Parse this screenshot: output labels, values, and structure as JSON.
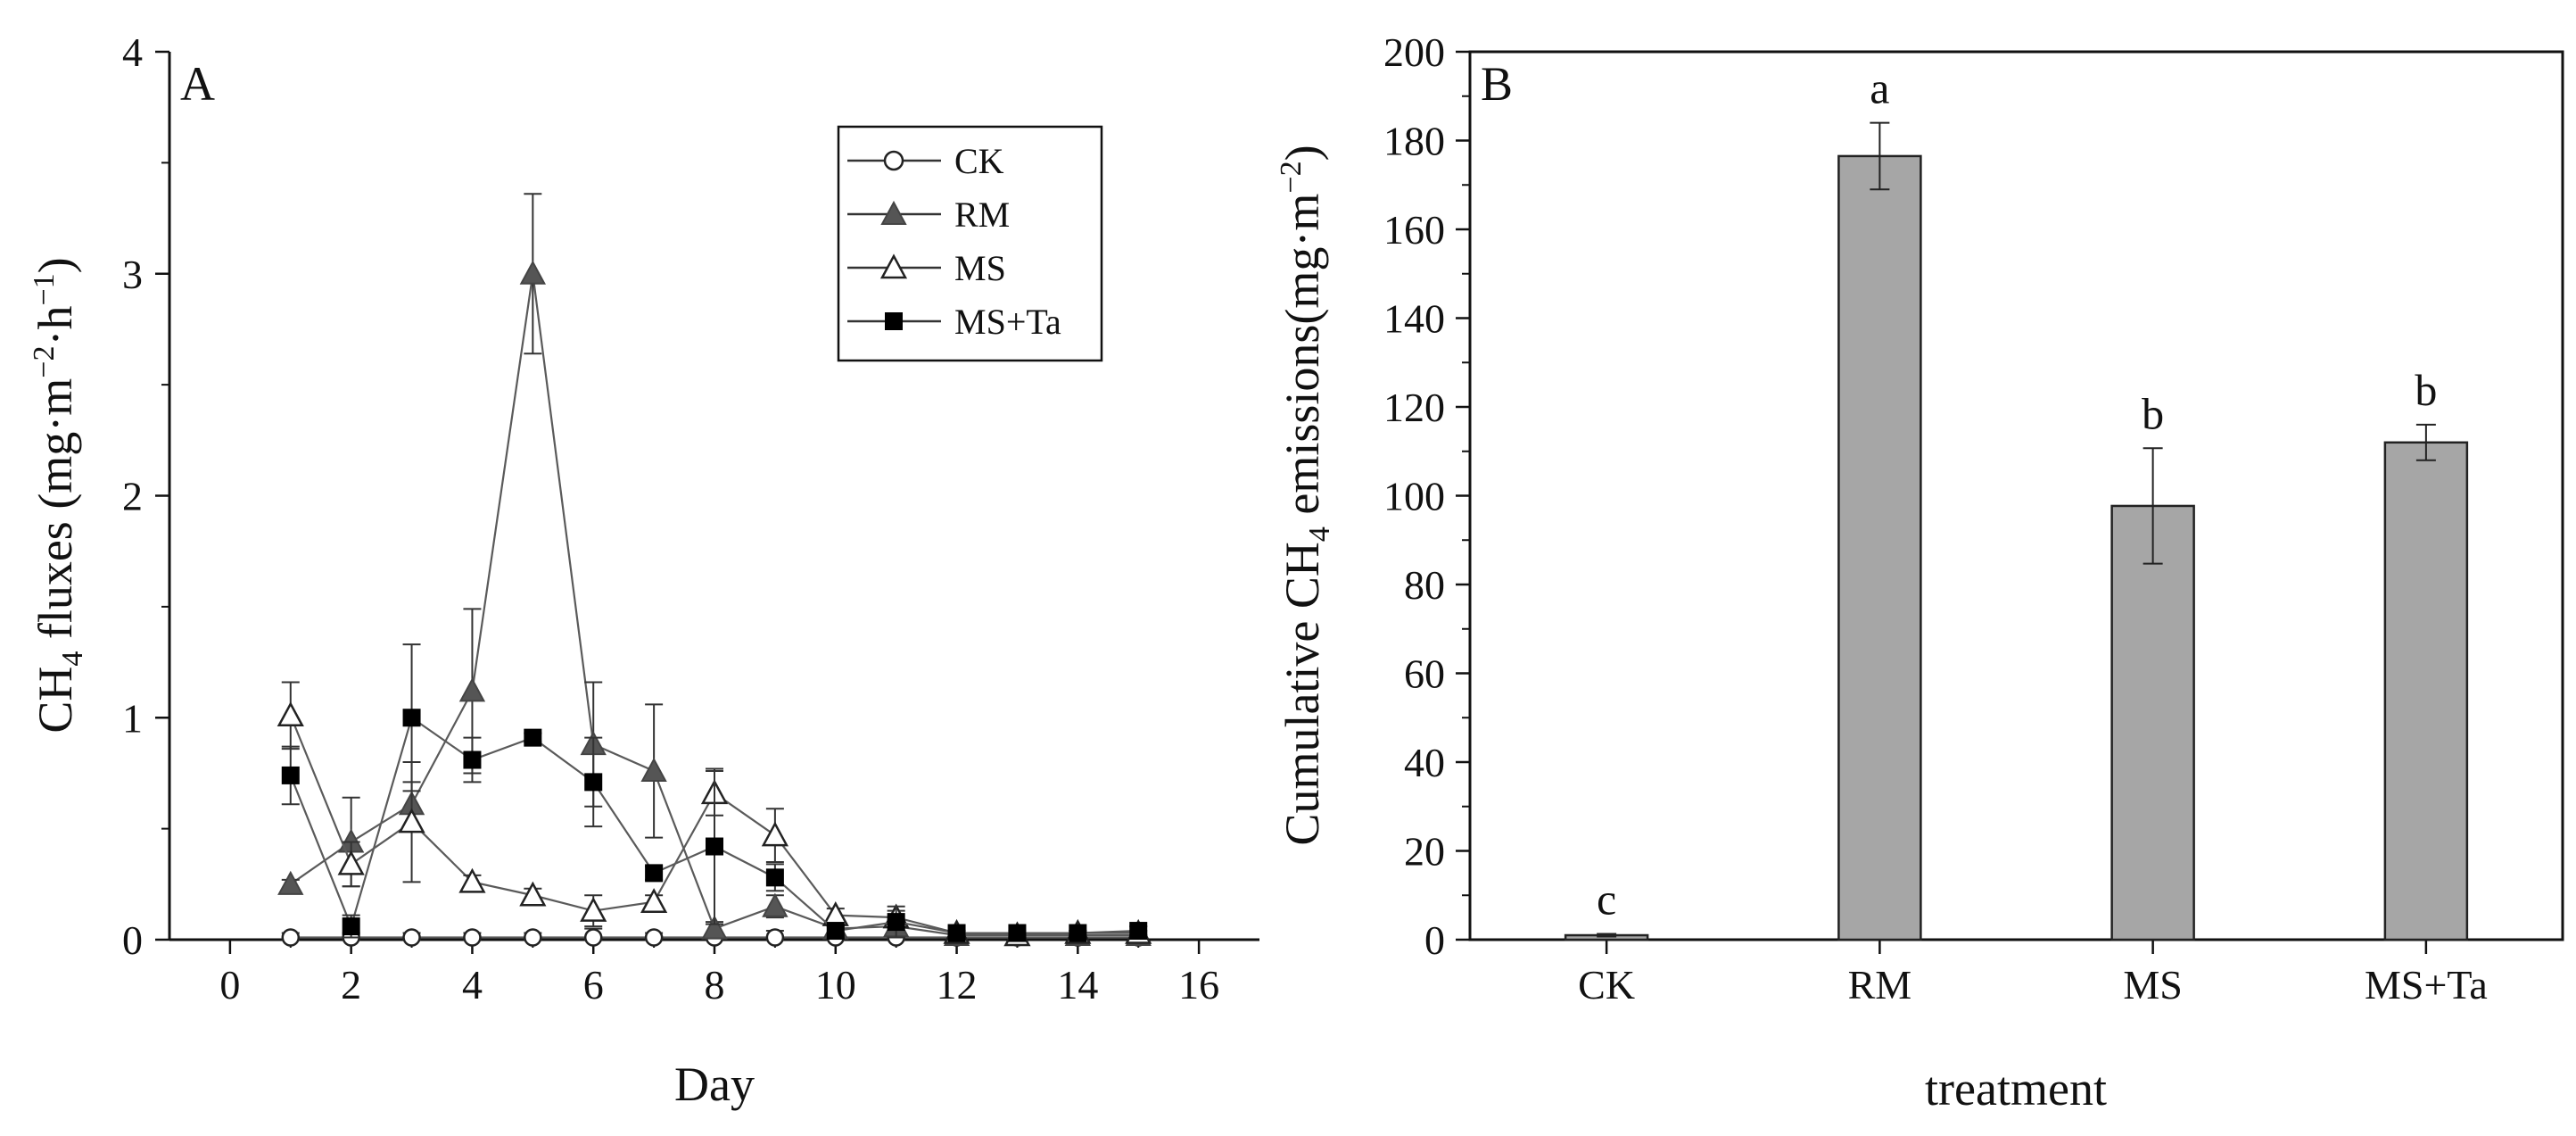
{
  "colors": {
    "axis": "#111111",
    "bar_fill": "#a6a6a6",
    "rm_marker": "#555555",
    "line": "#666666"
  },
  "chart_data": [
    {
      "type": "line",
      "panel_label": "A",
      "xlabel": "Day",
      "ylabel_main": "CH",
      "ylabel_sub": "4",
      "ylabel_rest": " fluxes (mg·m",
      "ylabel_sup1": "−2",
      "ylabel_mid": "·h",
      "ylabel_sup2": "−1",
      "ylabel_end": ")",
      "xlim": [
        -1,
        17
      ],
      "ylim": [
        0,
        4
      ],
      "xticks": [
        0,
        2,
        4,
        6,
        8,
        10,
        12,
        14,
        16
      ],
      "yticks": [
        0,
        1,
        2,
        3,
        4
      ],
      "x": [
        1,
        2,
        3,
        4,
        5,
        6,
        7,
        8,
        9,
        10,
        11,
        12,
        13,
        14,
        15
      ],
      "legend_position": "top-right",
      "series": [
        {
          "name": "CK",
          "marker": "open-circle",
          "values": [
            0.01,
            0.01,
            0.01,
            0.01,
            0.01,
            0.01,
            0.01,
            0.01,
            0.01,
            0.01,
            0.01,
            0.01,
            0.01,
            0.01,
            0.01
          ],
          "errors": [
            0.02,
            0.02,
            0.02,
            0.02,
            0.02,
            0.04,
            0.02,
            0.02,
            0.03,
            0.02,
            0.02,
            0.01,
            0.01,
            0.01,
            0.01
          ]
        },
        {
          "name": "RM",
          "marker": "filled-triangle",
          "values": [
            0.25,
            0.44,
            0.61,
            1.12,
            3.0,
            0.88,
            0.76,
            0.05,
            0.15,
            0.05,
            0.06,
            0.02,
            0.02,
            0.02,
            0.02
          ],
          "errors": [
            0.02,
            0.2,
            0.1,
            0.37,
            0.36,
            0.28,
            0.3,
            0.03,
            0.05,
            0.02,
            0.03,
            0.01,
            0.01,
            0.01,
            0.01
          ]
        },
        {
          "name": "MS",
          "marker": "open-triangle",
          "values": [
            1.01,
            0.34,
            0.53,
            0.26,
            0.2,
            0.13,
            0.17,
            0.66,
            0.47,
            0.11,
            0.1,
            0.03,
            0.02,
            0.03,
            0.03
          ],
          "errors": [
            0.15,
            0.1,
            0.27,
            0.03,
            0.03,
            0.07,
            0.03,
            0.1,
            0.12,
            0.03,
            0.03,
            0.01,
            0.01,
            0.01,
            0.01
          ]
        },
        {
          "name": "MS+Ta",
          "marker": "filled-square",
          "values": [
            0.74,
            0.06,
            1.0,
            0.81,
            0.91,
            0.71,
            0.3,
            0.42,
            0.28,
            0.04,
            0.08,
            0.03,
            0.03,
            0.03,
            0.04
          ],
          "errors": [
            0.13,
            0.05,
            0.33,
            0.1,
            0.02,
            0.2,
            0.03,
            0.35,
            0.06,
            0.02,
            0.07,
            0.01,
            0.01,
            0.01,
            0.02
          ]
        }
      ]
    },
    {
      "type": "bar",
      "panel_label": "B",
      "xlabel": "treatment",
      "ylabel_main": "Cumulative CH",
      "ylabel_sub": "4",
      "ylabel_rest": " emissions(mg·m",
      "ylabel_sup1": "−2",
      "ylabel_end": ")",
      "categories": [
        "CK",
        "RM",
        "MS",
        "MS+Ta"
      ],
      "values": [
        1.0,
        176.5,
        97.7,
        112.0
      ],
      "errors": [
        0.3,
        7.5,
        13.0,
        4.0
      ],
      "significance": [
        "c",
        "a",
        "b",
        "b"
      ],
      "ylim": [
        0,
        200
      ],
      "yticks": [
        0,
        20,
        40,
        60,
        80,
        100,
        120,
        140,
        160,
        180,
        200
      ]
    }
  ]
}
